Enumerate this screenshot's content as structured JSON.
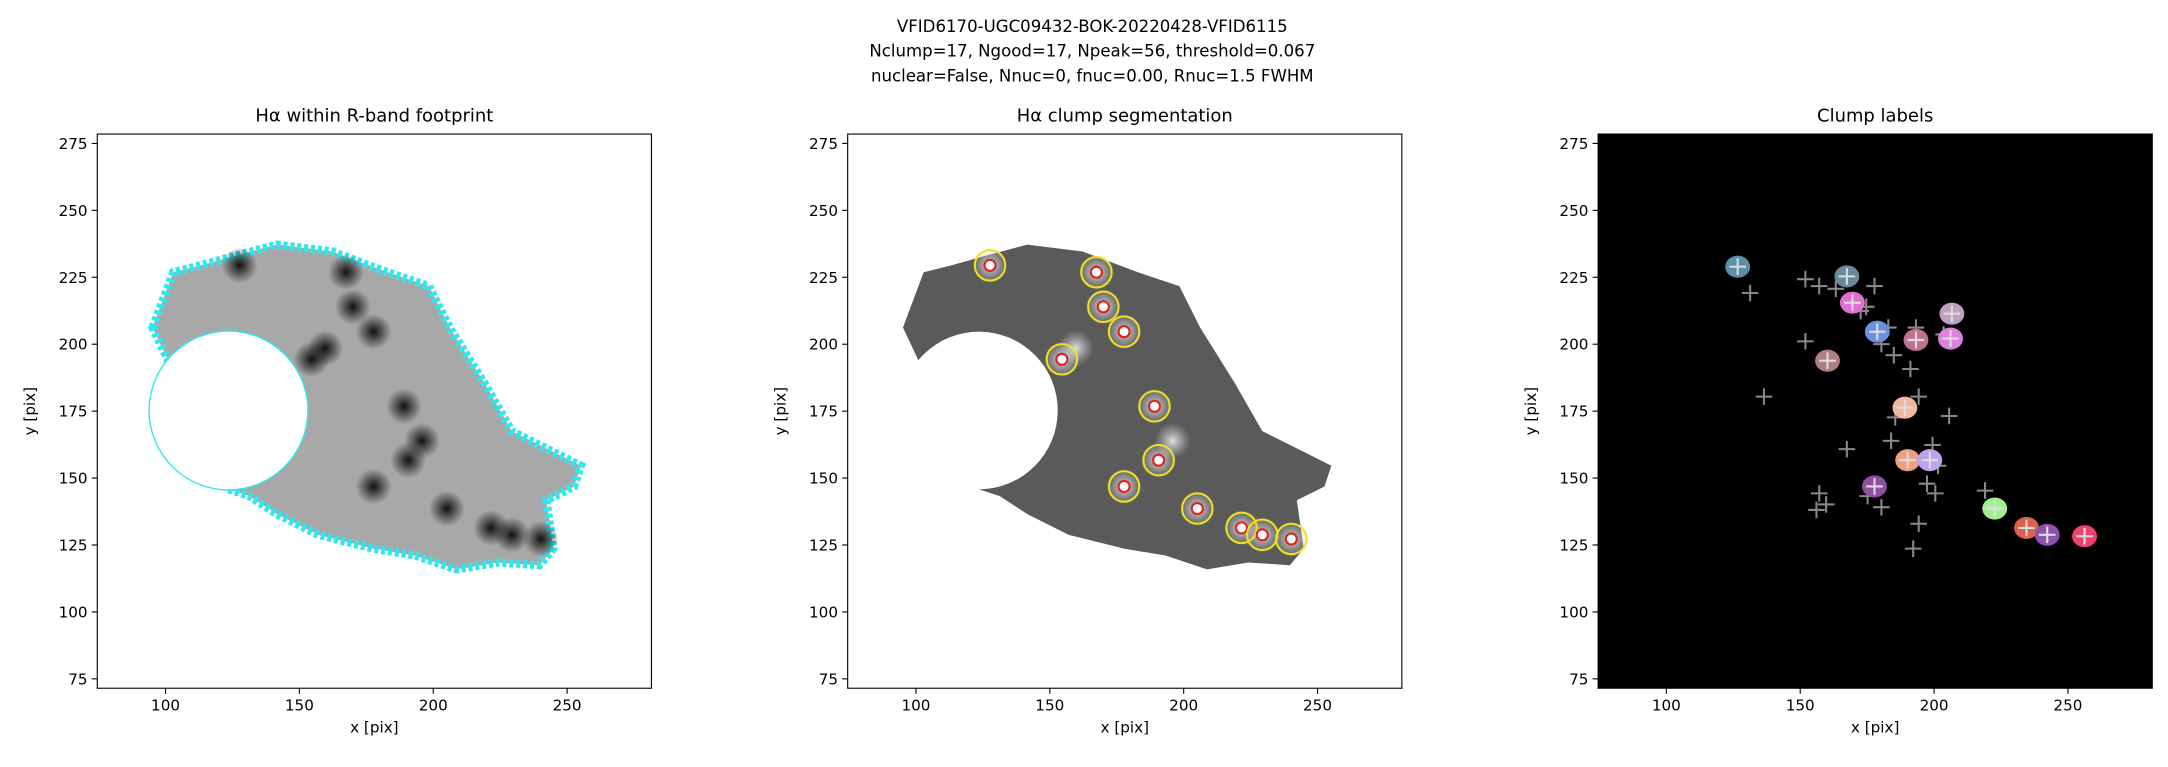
{
  "title": [
    "VFID6170-UGC09432-BOK-20220428-VFID6115",
    "Nclump=17, Ngood=17, Npeak=56, threshold=0.067",
    "nuclear=False, Nnuc=0, fnuc=0.00, Rnuc=1.5 FWHM"
  ],
  "chart_data": [
    {
      "type": "image",
      "title": "Hα within R-band footprint",
      "xlabel": "x [pix]",
      "ylabel": "y [pix]",
      "xlim": [
        74.5,
        281.5
      ],
      "ylim": [
        71.5,
        278.5
      ],
      "xticks": [
        100,
        150,
        200,
        250
      ],
      "yticks": [
        75,
        100,
        125,
        150,
        175,
        200,
        225,
        250,
        275
      ]
    },
    {
      "type": "image",
      "title": "Hα clump segmentation",
      "xlabel": "x [pix]",
      "ylabel": "y [pix]",
      "xlim": [
        74.5,
        281.5
      ],
      "ylim": [
        71.5,
        278.5
      ],
      "xticks": [
        100,
        150,
        200,
        250
      ],
      "yticks": [
        75,
        100,
        125,
        150,
        175,
        200,
        225,
        250,
        275
      ]
    },
    {
      "type": "image",
      "title": "Clump labels",
      "xlabel": "x [pix]",
      "ylabel": "y [pix]",
      "xlim": [
        74.5,
        281.5
      ],
      "ylim": [
        71.5,
        278.5
      ],
      "xticks": [
        100,
        150,
        200,
        250
      ],
      "yticks": [
        75,
        100,
        125,
        150,
        175,
        200,
        225,
        250,
        275
      ]
    }
  ]
}
